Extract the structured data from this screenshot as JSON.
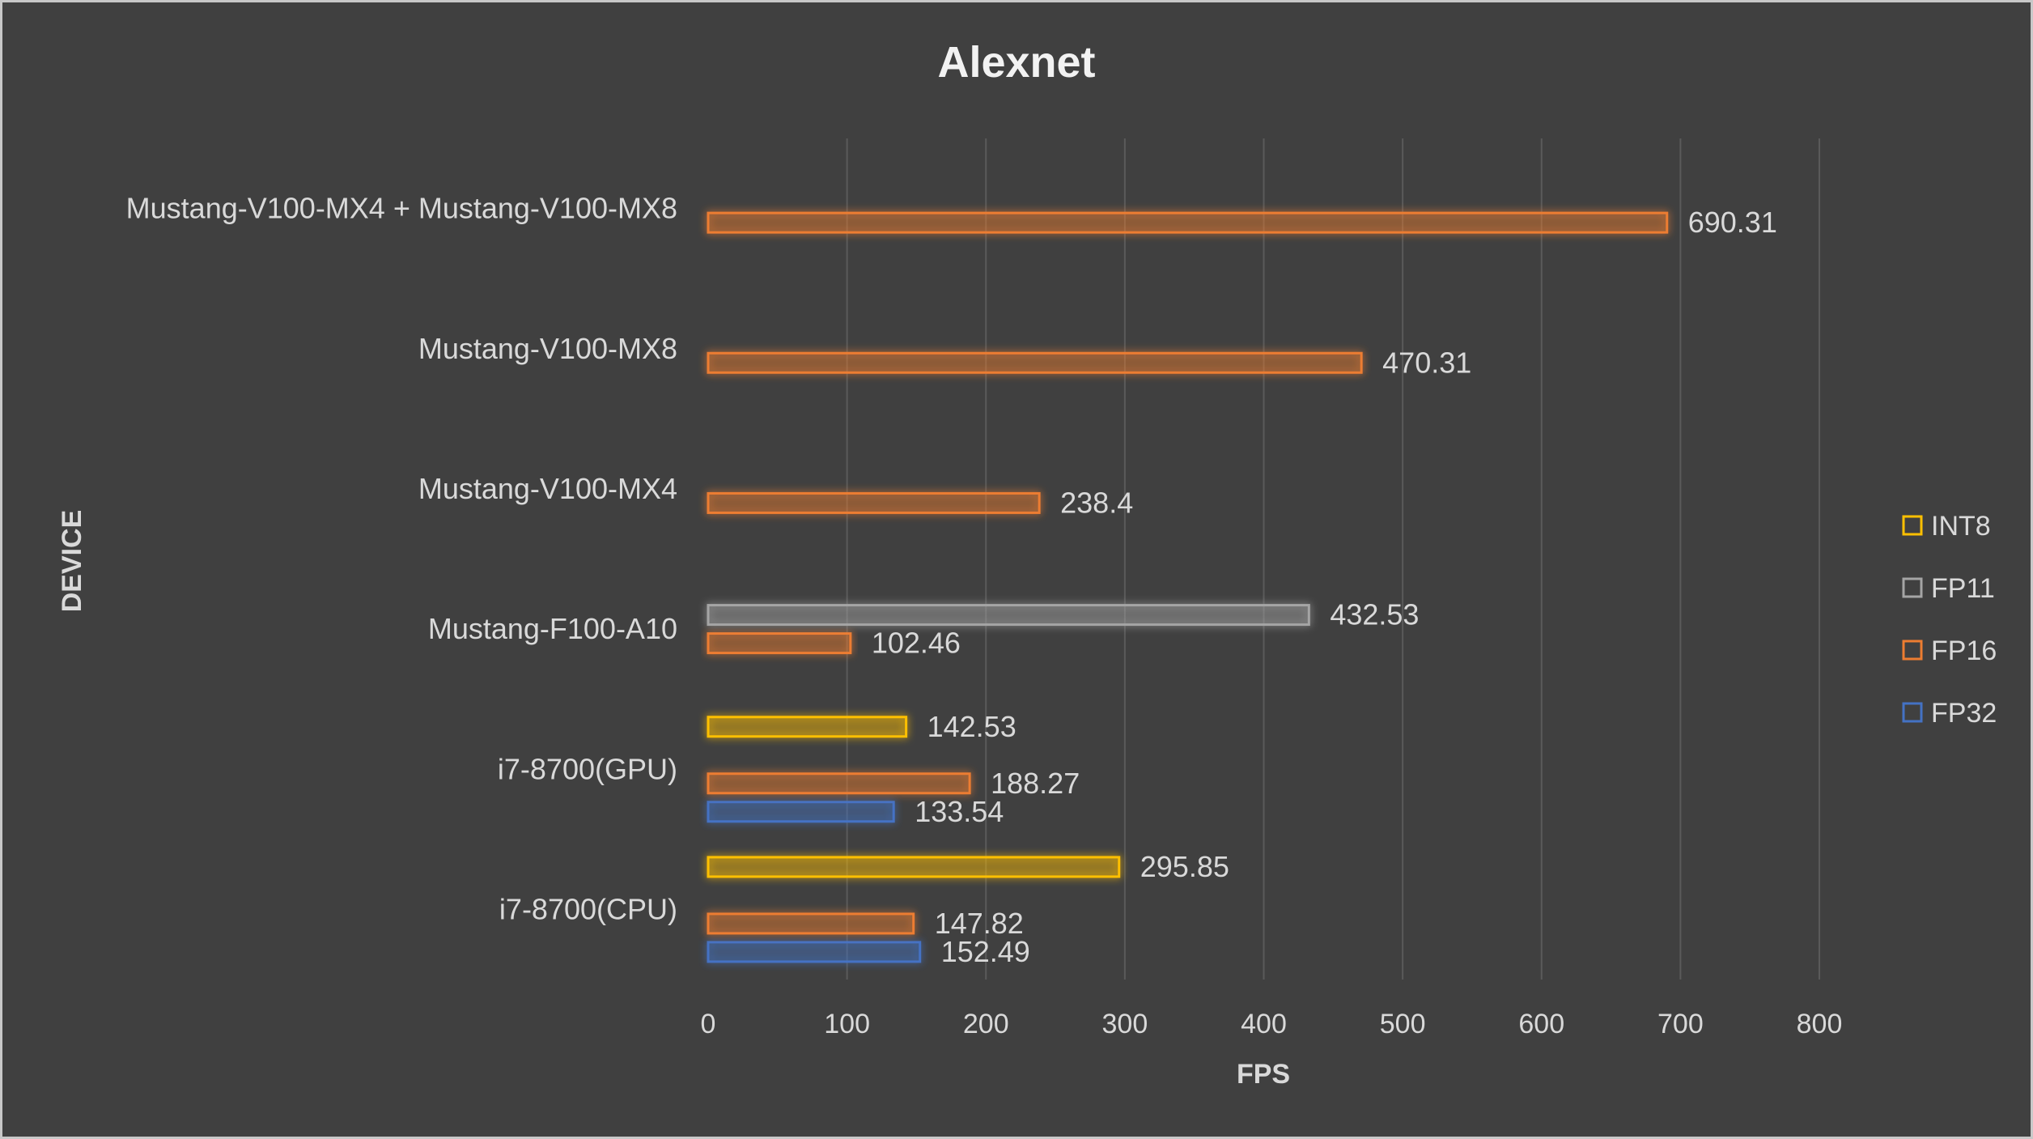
{
  "chart_data": {
    "type": "bar",
    "orientation": "horizontal",
    "title": "Alexnet",
    "xlabel": "FPS",
    "ylabel": "DEVICE",
    "xlim": [
      0,
      800
    ],
    "xticks": [
      "0",
      "100",
      "200",
      "300",
      "400",
      "500",
      "600",
      "700",
      "800"
    ],
    "grid": true,
    "legend_position": "right",
    "categories": [
      "i7-8700(CPU)",
      "i7-8700(GPU)",
      "Mustang-F100-A10",
      "Mustang-V100-MX4",
      "Mustang-V100-MX8",
      "Mustang-V100-MX4 + Mustang-V100-MX8"
    ],
    "series": [
      {
        "name": "FP32",
        "color": "#4472c4",
        "values": [
          152.49,
          133.54,
          null,
          null,
          null,
          null
        ]
      },
      {
        "name": "FP16",
        "color": "#ed7d31",
        "values": [
          147.82,
          188.27,
          102.46,
          238.4,
          470.31,
          690.31
        ]
      },
      {
        "name": "FP11",
        "color": "#a5a5a5",
        "values": [
          null,
          null,
          432.53,
          null,
          null,
          null
        ]
      },
      {
        "name": "INT8",
        "color": "#ffc000",
        "values": [
          295.85,
          142.53,
          null,
          null,
          null,
          null
        ]
      }
    ],
    "data_labels": [
      [
        [
          "152.49"
        ],
        [
          "147.82"
        ],
        [
          null
        ],
        [
          "295.85"
        ]
      ],
      [
        [
          "133.54"
        ],
        [
          "188.27"
        ],
        [
          null
        ],
        [
          "142.53"
        ]
      ],
      [
        [
          null
        ],
        [
          "102.46"
        ],
        [
          "432.53"
        ],
        [
          null
        ]
      ],
      [
        [
          null
        ],
        [
          "238.4"
        ],
        [
          null
        ],
        [
          null
        ]
      ],
      [
        [
          null
        ],
        [
          "470.31"
        ],
        [
          null
        ],
        [
          null
        ]
      ],
      [
        [
          null
        ],
        [
          "690.31"
        ],
        [
          null
        ],
        [
          null
        ]
      ]
    ],
    "legend_order": [
      "INT8",
      "FP11",
      "FP16",
      "FP32"
    ]
  }
}
